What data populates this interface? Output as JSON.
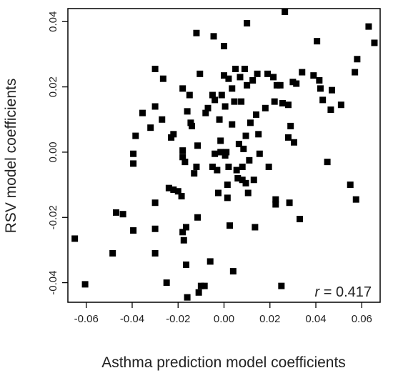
{
  "chart_data": {
    "type": "scatter",
    "title": "",
    "xlabel": "Asthma prediction model coefficients",
    "ylabel": "RSV model coefficients",
    "xlim": [
      -0.068,
      0.068
    ],
    "ylim": [
      -0.046,
      0.044
    ],
    "x_ticks": [
      -0.06,
      -0.04,
      -0.02,
      0.0,
      0.02,
      0.04,
      0.06
    ],
    "x_tick_labels": [
      "-0.06",
      "-0.04",
      "-0.02",
      "0.00",
      "0.02",
      "0.04",
      "0.06"
    ],
    "y_ticks": [
      -0.04,
      -0.02,
      0.0,
      0.02,
      0.04
    ],
    "y_tick_labels": [
      "-0.04",
      "-0.02",
      "0.00",
      "0.02",
      "0.04"
    ],
    "grid": false,
    "marker": "square",
    "marker_color": "#000000",
    "annotation": {
      "prefix": "r",
      "text": " = 0.417",
      "placement": "bottom-right"
    },
    "points": [
      {
        "x": -0.065,
        "y": -0.0265
      },
      {
        "x": -0.0605,
        "y": -0.0405
      },
      {
        "x": -0.0485,
        "y": -0.031
      },
      {
        "x": -0.047,
        "y": -0.0185
      },
      {
        "x": -0.044,
        "y": -0.019
      },
      {
        "x": -0.0395,
        "y": -0.024
      },
      {
        "x": -0.0395,
        "y": -0.0005
      },
      {
        "x": -0.0395,
        "y": -0.0035
      },
      {
        "x": -0.0385,
        "y": 0.005
      },
      {
        "x": -0.0355,
        "y": 0.012
      },
      {
        "x": -0.032,
        "y": 0.0075
      },
      {
        "x": -0.03,
        "y": 0.0255
      },
      {
        "x": -0.03,
        "y": 0.014
      },
      {
        "x": -0.03,
        "y": -0.0155
      },
      {
        "x": -0.03,
        "y": -0.0235
      },
      {
        "x": -0.03,
        "y": -0.031
      },
      {
        "x": -0.027,
        "y": 0.01
      },
      {
        "x": -0.0265,
        "y": 0.0225
      },
      {
        "x": -0.025,
        "y": -0.04
      },
      {
        "x": -0.024,
        "y": -0.011
      },
      {
        "x": -0.023,
        "y": 0.0045
      },
      {
        "x": -0.022,
        "y": 0.0055
      },
      {
        "x": -0.022,
        "y": -0.0115
      },
      {
        "x": -0.02,
        "y": -0.012
      },
      {
        "x": -0.0185,
        "y": -0.0135
      },
      {
        "x": -0.018,
        "y": 0.0195
      },
      {
        "x": -0.018,
        "y": 0.0005
      },
      {
        "x": -0.018,
        "y": -0.0015
      },
      {
        "x": -0.018,
        "y": -0.0245
      },
      {
        "x": -0.0175,
        "y": -0.027
      },
      {
        "x": -0.017,
        "y": -0.003
      },
      {
        "x": -0.0165,
        "y": -0.023
      },
      {
        "x": -0.0165,
        "y": -0.0345
      },
      {
        "x": -0.016,
        "y": 0.0125
      },
      {
        "x": -0.016,
        "y": -0.0445
      },
      {
        "x": -0.015,
        "y": 0.0175
      },
      {
        "x": -0.0145,
        "y": 0.009
      },
      {
        "x": -0.014,
        "y": 0.008
      },
      {
        "x": -0.013,
        "y": -0.0065
      },
      {
        "x": -0.012,
        "y": 0.0365
      },
      {
        "x": -0.012,
        "y": -0.0045
      },
      {
        "x": -0.0115,
        "y": 0.002
      },
      {
        "x": -0.0115,
        "y": -0.02
      },
      {
        "x": -0.011,
        "y": -0.043
      },
      {
        "x": -0.0105,
        "y": 0.024
      },
      {
        "x": -0.01,
        "y": -0.041
      },
      {
        "x": -0.0085,
        "y": -0.041
      },
      {
        "x": -0.008,
        "y": 0.012
      },
      {
        "x": -0.007,
        "y": 0.0135
      },
      {
        "x": -0.006,
        "y": -0.0335
      },
      {
        "x": -0.005,
        "y": 0.0175
      },
      {
        "x": -0.005,
        "y": -0.0045
      },
      {
        "x": -0.0045,
        "y": 0.0355
      },
      {
        "x": -0.004,
        "y": 0.016
      },
      {
        "x": -0.004,
        "y": -0.0005
      },
      {
        "x": -0.003,
        "y": -0.0055
      },
      {
        "x": -0.0025,
        "y": -0.0125
      },
      {
        "x": -0.002,
        "y": 0.01
      },
      {
        "x": -0.0015,
        "y": 0.0035
      },
      {
        "x": -0.0015,
        "y": 0.0
      },
      {
        "x": -0.001,
        "y": 0.0175
      },
      {
        "x": 0.0,
        "y": 0.0325
      },
      {
        "x": 0.0,
        "y": 0.0235
      },
      {
        "x": 0.0005,
        "y": 0.014
      },
      {
        "x": 0.0005,
        "y": -0.001
      },
      {
        "x": 0.001,
        "y": 0.0
      },
      {
        "x": 0.0015,
        "y": -0.01
      },
      {
        "x": 0.0015,
        "y": -0.014
      },
      {
        "x": 0.002,
        "y": 0.0225
      },
      {
        "x": 0.002,
        "y": -0.0045
      },
      {
        "x": 0.0025,
        "y": -0.0225
      },
      {
        "x": 0.0035,
        "y": 0.0195
      },
      {
        "x": 0.0035,
        "y": 0.0085
      },
      {
        "x": 0.004,
        "y": -0.0365
      },
      {
        "x": 0.0045,
        "y": 0.0155
      },
      {
        "x": 0.005,
        "y": 0.0255
      },
      {
        "x": 0.0055,
        "y": -0.0055
      },
      {
        "x": 0.006,
        "y": -0.008
      },
      {
        "x": 0.0065,
        "y": 0.0025
      },
      {
        "x": 0.007,
        "y": 0.023
      },
      {
        "x": 0.0075,
        "y": 0.0155
      },
      {
        "x": 0.008,
        "y": -0.0045
      },
      {
        "x": 0.008,
        "y": -0.0085
      },
      {
        "x": 0.0085,
        "y": 0.001
      },
      {
        "x": 0.009,
        "y": 0.0255
      },
      {
        "x": 0.0095,
        "y": 0.005
      },
      {
        "x": 0.0095,
        "y": -0.0095
      },
      {
        "x": 0.01,
        "y": 0.0395
      },
      {
        "x": 0.01,
        "y": 0.0205
      },
      {
        "x": 0.0105,
        "y": -0.0125
      },
      {
        "x": 0.011,
        "y": -0.0025
      },
      {
        "x": 0.0115,
        "y": 0.009
      },
      {
        "x": 0.0125,
        "y": 0.022
      },
      {
        "x": 0.013,
        "y": -0.0085
      },
      {
        "x": 0.0135,
        "y": -0.023
      },
      {
        "x": 0.014,
        "y": 0.0115
      },
      {
        "x": 0.0145,
        "y": 0.024
      },
      {
        "x": 0.015,
        "y": 0.0055
      },
      {
        "x": 0.0155,
        "y": -0.0005
      },
      {
        "x": 0.018,
        "y": 0.0135
      },
      {
        "x": 0.019,
        "y": 0.024
      },
      {
        "x": 0.0195,
        "y": -0.0045
      },
      {
        "x": 0.0215,
        "y": 0.023
      },
      {
        "x": 0.022,
        "y": 0.0155
      },
      {
        "x": 0.0225,
        "y": -0.0145
      },
      {
        "x": 0.0225,
        "y": -0.016
      },
      {
        "x": 0.023,
        "y": 0.0205
      },
      {
        "x": 0.0245,
        "y": 0.0205
      },
      {
        "x": 0.025,
        "y": -0.041
      },
      {
        "x": 0.0255,
        "y": 0.015
      },
      {
        "x": 0.0265,
        "y": 0.043
      },
      {
        "x": 0.028,
        "y": 0.0145
      },
      {
        "x": 0.028,
        "y": 0.0045
      },
      {
        "x": 0.0285,
        "y": -0.0155
      },
      {
        "x": 0.029,
        "y": 0.008
      },
      {
        "x": 0.03,
        "y": 0.0215
      },
      {
        "x": 0.0305,
        "y": 0.003
      },
      {
        "x": 0.0315,
        "y": 0.021
      },
      {
        "x": 0.033,
        "y": -0.0205
      },
      {
        "x": 0.034,
        "y": 0.0245
      },
      {
        "x": 0.039,
        "y": 0.0235
      },
      {
        "x": 0.0405,
        "y": 0.034
      },
      {
        "x": 0.0415,
        "y": 0.022
      },
      {
        "x": 0.042,
        "y": 0.0195
      },
      {
        "x": 0.043,
        "y": 0.016
      },
      {
        "x": 0.045,
        "y": -0.003
      },
      {
        "x": 0.0465,
        "y": 0.013
      },
      {
        "x": 0.047,
        "y": 0.019
      },
      {
        "x": 0.051,
        "y": 0.0145
      },
      {
        "x": 0.055,
        "y": -0.01
      },
      {
        "x": 0.057,
        "y": 0.0245
      },
      {
        "x": 0.0575,
        "y": -0.0145
      },
      {
        "x": 0.058,
        "y": 0.0285
      },
      {
        "x": 0.063,
        "y": 0.0385
      },
      {
        "x": 0.0655,
        "y": 0.0335
      }
    ]
  }
}
